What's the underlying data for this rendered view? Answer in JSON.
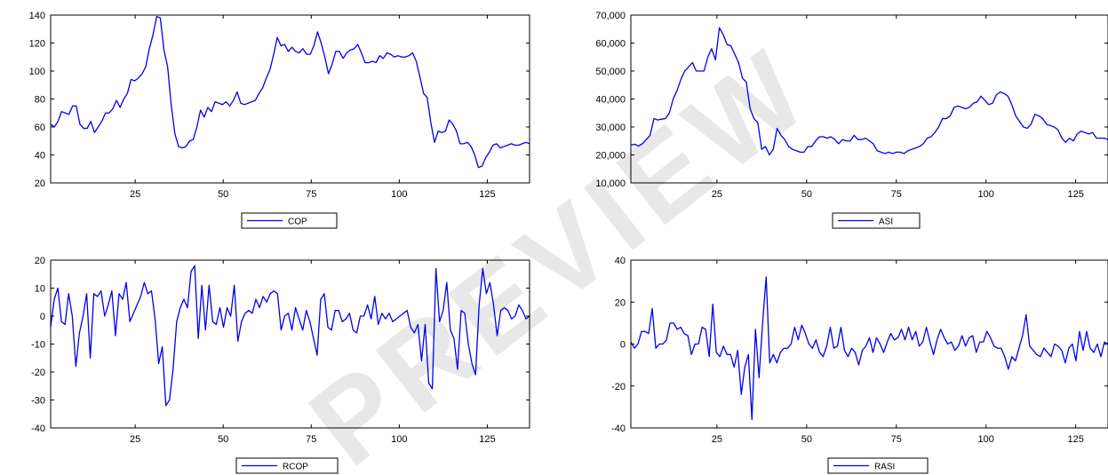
{
  "watermark": "PREVIEW",
  "colors": {
    "series": "#0000ee",
    "axis": "#000000",
    "background": "#ffffff"
  },
  "chart_data": [
    {
      "type": "line",
      "title": "",
      "legend": "COP",
      "legend_position": "bottom-center",
      "grid": false,
      "xlim": [
        1,
        137
      ],
      "ylim": [
        20,
        140
      ],
      "xticks": [
        25,
        50,
        75,
        100,
        125
      ],
      "yticks": [
        20,
        40,
        60,
        80,
        100,
        120,
        140
      ],
      "ytick_labels": [
        "20",
        "40",
        "60",
        "80",
        "100",
        "120",
        "140"
      ],
      "series": [
        {
          "values": [
            62,
            60,
            64,
            71,
            70,
            69,
            75,
            75,
            62,
            59,
            59,
            64,
            56,
            60,
            64,
            70,
            70,
            73,
            79,
            74,
            80,
            84,
            94,
            93,
            95,
            98,
            103,
            116,
            126,
            139,
            138,
            115,
            103,
            75,
            55,
            46,
            45,
            46,
            50,
            51,
            60,
            72,
            67,
            74,
            71,
            78,
            77,
            76,
            78,
            75,
            79,
            85,
            77,
            76,
            77,
            78,
            79,
            84,
            88,
            95,
            101,
            112,
            124,
            118,
            119,
            114,
            117,
            114,
            113,
            116,
            112,
            112,
            118,
            128,
            120,
            110,
            98,
            105,
            114,
            114,
            109,
            113,
            115,
            116,
            119,
            113,
            106,
            106,
            107,
            106,
            111,
            109,
            113,
            112,
            110,
            111,
            110,
            110,
            111,
            113,
            107,
            96,
            84,
            81,
            63,
            49,
            57,
            56,
            57,
            65,
            62,
            57,
            48,
            48,
            49,
            46,
            40,
            31,
            32,
            38,
            42,
            47,
            48,
            45,
            46,
            47,
            48,
            47,
            47,
            48,
            49,
            48
          ]
        }
      ]
    },
    {
      "type": "line",
      "title": "",
      "legend": "ASI",
      "legend_position": "bottom-center",
      "grid": false,
      "xlim": [
        1,
        134
      ],
      "ylim": [
        10000,
        70000
      ],
      "xticks": [
        25,
        50,
        75,
        100,
        125
      ],
      "yticks": [
        10000,
        20000,
        30000,
        40000,
        50000,
        60000,
        70000
      ],
      "ytick_labels": [
        "10,000",
        "20,000",
        "30,000",
        "40,000",
        "50,000",
        "60,000",
        "70,000"
      ],
      "series": [
        {
          "values": [
            23500,
            23800,
            23200,
            24000,
            25500,
            27000,
            33000,
            32500,
            32800,
            33000,
            35000,
            40000,
            43000,
            47000,
            50000,
            51500,
            53000,
            50000,
            50000,
            50000,
            55000,
            58000,
            54000,
            65500,
            63000,
            59500,
            59000,
            56000,
            53000,
            47500,
            46000,
            36500,
            33000,
            31500,
            22000,
            23000,
            20000,
            22000,
            29500,
            27000,
            25500,
            23000,
            22000,
            21500,
            21000,
            21000,
            23000,
            23000,
            25000,
            26500,
            26500,
            26000,
            26500,
            25500,
            24000,
            25500,
            25000,
            25000,
            27000,
            25500,
            25500,
            26000,
            25000,
            24000,
            21500,
            21000,
            20500,
            21000,
            20500,
            21000,
            21000,
            20500,
            21500,
            22000,
            22500,
            23000,
            24000,
            26000,
            26500,
            28000,
            30000,
            33000,
            33000,
            34000,
            37000,
            37500,
            37000,
            36500,
            37000,
            38500,
            39000,
            41000,
            39500,
            38000,
            38500,
            41500,
            42500,
            42000,
            41000,
            38000,
            34000,
            32000,
            30000,
            29500,
            31000,
            34500,
            34000,
            33000,
            31000,
            30500,
            30000,
            29000,
            26000,
            24500,
            26000,
            25000,
            27500,
            28500,
            28000,
            27500,
            28000,
            26000,
            26000,
            26000,
            25500
          ]
        }
      ]
    },
    {
      "type": "line",
      "title": "",
      "legend": "RCOP",
      "legend_position": "bottom-center",
      "grid": false,
      "xlim": [
        1,
        137
      ],
      "ylim": [
        -40,
        20
      ],
      "xticks": [
        25,
        50,
        75,
        100,
        125
      ],
      "yticks": [
        -40,
        -30,
        -20,
        -10,
        0,
        10,
        20
      ],
      "ytick_labels": [
        "-40",
        "-30",
        "-20",
        "-10",
        "0",
        "10",
        "20"
      ],
      "series": [
        {
          "values": [
            -4,
            6,
            10,
            -2,
            -3,
            8,
            0,
            -18,
            -6,
            0,
            8,
            -15,
            8,
            7,
            9,
            0,
            4,
            9,
            -7,
            8,
            6,
            12,
            -2,
            1,
            4,
            7,
            12,
            8,
            9,
            -1,
            -17,
            -11,
            -32,
            -30,
            -19,
            -2,
            3,
            6,
            3,
            16,
            18,
            -8,
            11,
            -5,
            11,
            -2,
            -3,
            3,
            -4,
            3,
            0,
            11,
            -9,
            -2,
            1,
            2,
            1,
            6,
            3,
            7,
            5,
            8,
            9,
            8,
            -5,
            0,
            1,
            -5,
            3,
            -1,
            -5,
            2,
            -2,
            -8,
            -14,
            6,
            8,
            -4,
            -5,
            2,
            2,
            -2,
            -1,
            1,
            -5,
            -6,
            0,
            0,
            4,
            -1,
            7,
            -3,
            1,
            -1,
            1,
            -2,
            -1,
            0,
            1,
            2,
            -4,
            -6,
            -3,
            -16,
            -3,
            -24,
            -26,
            17,
            -2,
            2,
            12,
            -5,
            -8,
            -19,
            2,
            1,
            -10,
            -17,
            -21,
            4,
            17,
            8,
            12,
            4,
            -7,
            2,
            3,
            2,
            -1,
            0,
            4,
            2,
            -1,
            0
          ]
        }
      ]
    },
    {
      "type": "line",
      "title": "",
      "legend": "RASI",
      "legend_position": "bottom-center",
      "grid": false,
      "xlim": [
        1,
        134
      ],
      "ylim": [
        -40,
        40
      ],
      "xticks": [
        25,
        50,
        75,
        100,
        125
      ],
      "yticks": [
        -40,
        -20,
        0,
        20,
        40
      ],
      "ytick_labels": [
        "-40",
        "-20",
        "0",
        "20",
        "40"
      ],
      "series": [
        {
          "values": [
            1,
            -2,
            0,
            6,
            6,
            5,
            17,
            -2,
            0,
            0,
            2,
            10,
            10,
            7,
            8,
            5,
            4,
            -5,
            0,
            0,
            8,
            7,
            -6,
            19,
            -4,
            -6,
            -1,
            -5,
            -5,
            -11,
            -3,
            -24,
            -11,
            -5,
            -36,
            7,
            -16,
            10,
            32,
            -9,
            -5,
            -9,
            -4,
            -2,
            -2,
            0,
            8,
            2,
            9,
            5,
            0,
            -2,
            2,
            -4,
            -6,
            -1,
            8,
            -2,
            -1,
            8,
            -3,
            -6,
            -2,
            -4,
            -10,
            -3,
            -1,
            3,
            -4,
            3,
            0,
            -4,
            1,
            5,
            2,
            3,
            7,
            2,
            8,
            2,
            6,
            -1,
            1,
            8,
            1,
            -5,
            2,
            7,
            3,
            0,
            1,
            -3,
            -1,
            4,
            -1,
            3,
            4,
            -4,
            1,
            1,
            6,
            3,
            -1,
            -2,
            -2,
            -6,
            -12,
            -6,
            -8,
            -2,
            4,
            14,
            -1,
            -3,
            -5,
            -6,
            -2,
            -4,
            -6,
            0,
            -1,
            -3,
            -9,
            -2,
            0,
            -8,
            6,
            -3,
            6,
            -2,
            -4,
            0,
            -6,
            1,
            0
          ]
        }
      ]
    }
  ]
}
